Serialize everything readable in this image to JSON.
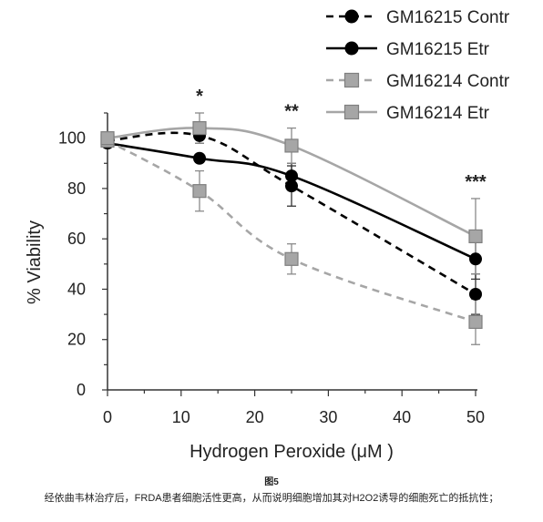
{
  "chart_data": {
    "type": "line",
    "xlabel": "Hydrogen Peroxide (μM )",
    "ylabel": "% Viability",
    "x": [
      0,
      12.5,
      25,
      50
    ],
    "xlim": [
      0,
      50
    ],
    "ylim": [
      0,
      110
    ],
    "xticks": [
      0,
      10,
      20,
      30,
      40,
      50
    ],
    "xtick_labels": [
      "0",
      "10",
      "20",
      "30",
      "40",
      "50"
    ],
    "yticks": [
      0,
      20,
      40,
      60,
      80,
      100
    ],
    "ytick_labels": [
      "0",
      "20",
      "40",
      "60",
      "80",
      "100"
    ],
    "grid": false,
    "legend_position": "top-right",
    "series": [
      {
        "name": "GM16215 Contr",
        "values": [
          99,
          101,
          81,
          38
        ],
        "errors": [
          0,
          3,
          8,
          8
        ],
        "color": "#000000",
        "dash": "dashed",
        "marker": "circle"
      },
      {
        "name": "GM16215 Etr",
        "values": [
          98,
          92,
          85,
          52
        ],
        "errors": [
          0,
          0,
          5,
          8
        ],
        "color": "#000000",
        "dash": "solid",
        "marker": "circle"
      },
      {
        "name": "GM16214 Contr",
        "values": [
          99,
          79,
          52,
          27
        ],
        "errors": [
          0,
          8,
          6,
          9
        ],
        "color": "#a6a6a6",
        "dash": "dashed",
        "marker": "square"
      },
      {
        "name": "GM16214 Etr",
        "values": [
          100,
          104,
          97,
          61
        ],
        "errors": [
          0,
          6,
          7,
          15
        ],
        "color": "#a6a6a6",
        "dash": "solid",
        "marker": "square"
      }
    ],
    "annotations": [
      {
        "text": "*",
        "x": 12.5
      },
      {
        "text": "**",
        "x": 25
      },
      {
        "text": "***",
        "x": 50
      }
    ]
  },
  "caption": {
    "title": "图5",
    "text": "经依曲韦林治疗后，FRDA患者细胞活性更高，从而说明细胞增加其对H2O2诱导的细胞死亡的抵抗性；"
  }
}
